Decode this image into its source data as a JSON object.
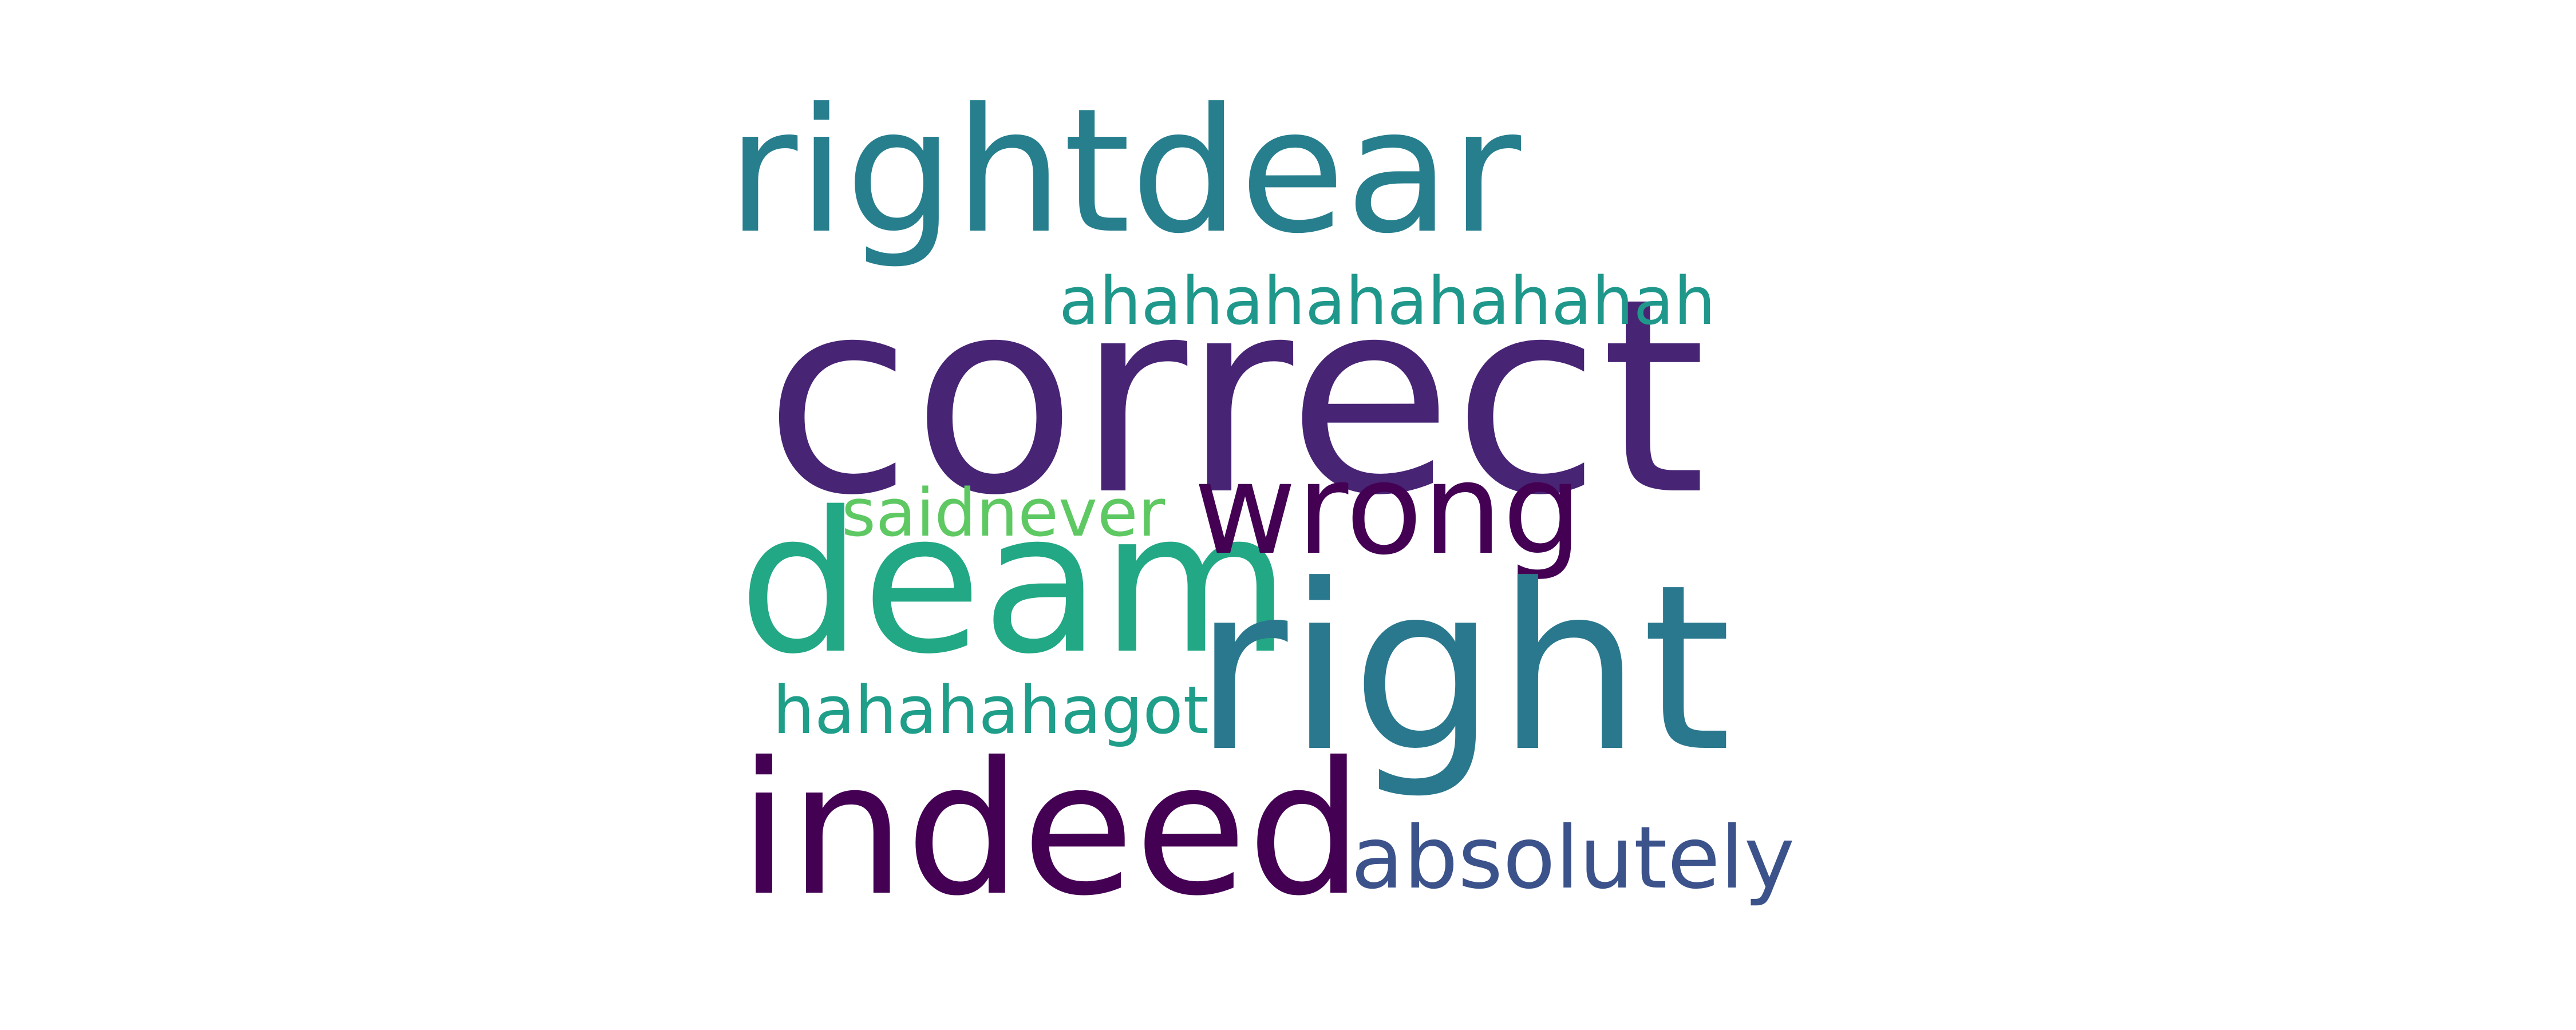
{
  "words": [
    {
      "text": "rightdear",
      "color": "#277f8e"
    },
    {
      "text": "ahahahahahahahah",
      "color": "#1f988b"
    },
    {
      "text": "correct",
      "color": "#482475"
    },
    {
      "text": "saidnever",
      "color": "#5ec962"
    },
    {
      "text": "wrong",
      "color": "#440154"
    },
    {
      "text": "deam",
      "color": "#22a884"
    },
    {
      "text": "right",
      "color": "#2a788e"
    },
    {
      "text": "hahahahagot",
      "color": "#1f9e89"
    },
    {
      "text": "indeed",
      "color": "#440154"
    },
    {
      "text": "absolutely",
      "color": "#3b528b"
    }
  ]
}
